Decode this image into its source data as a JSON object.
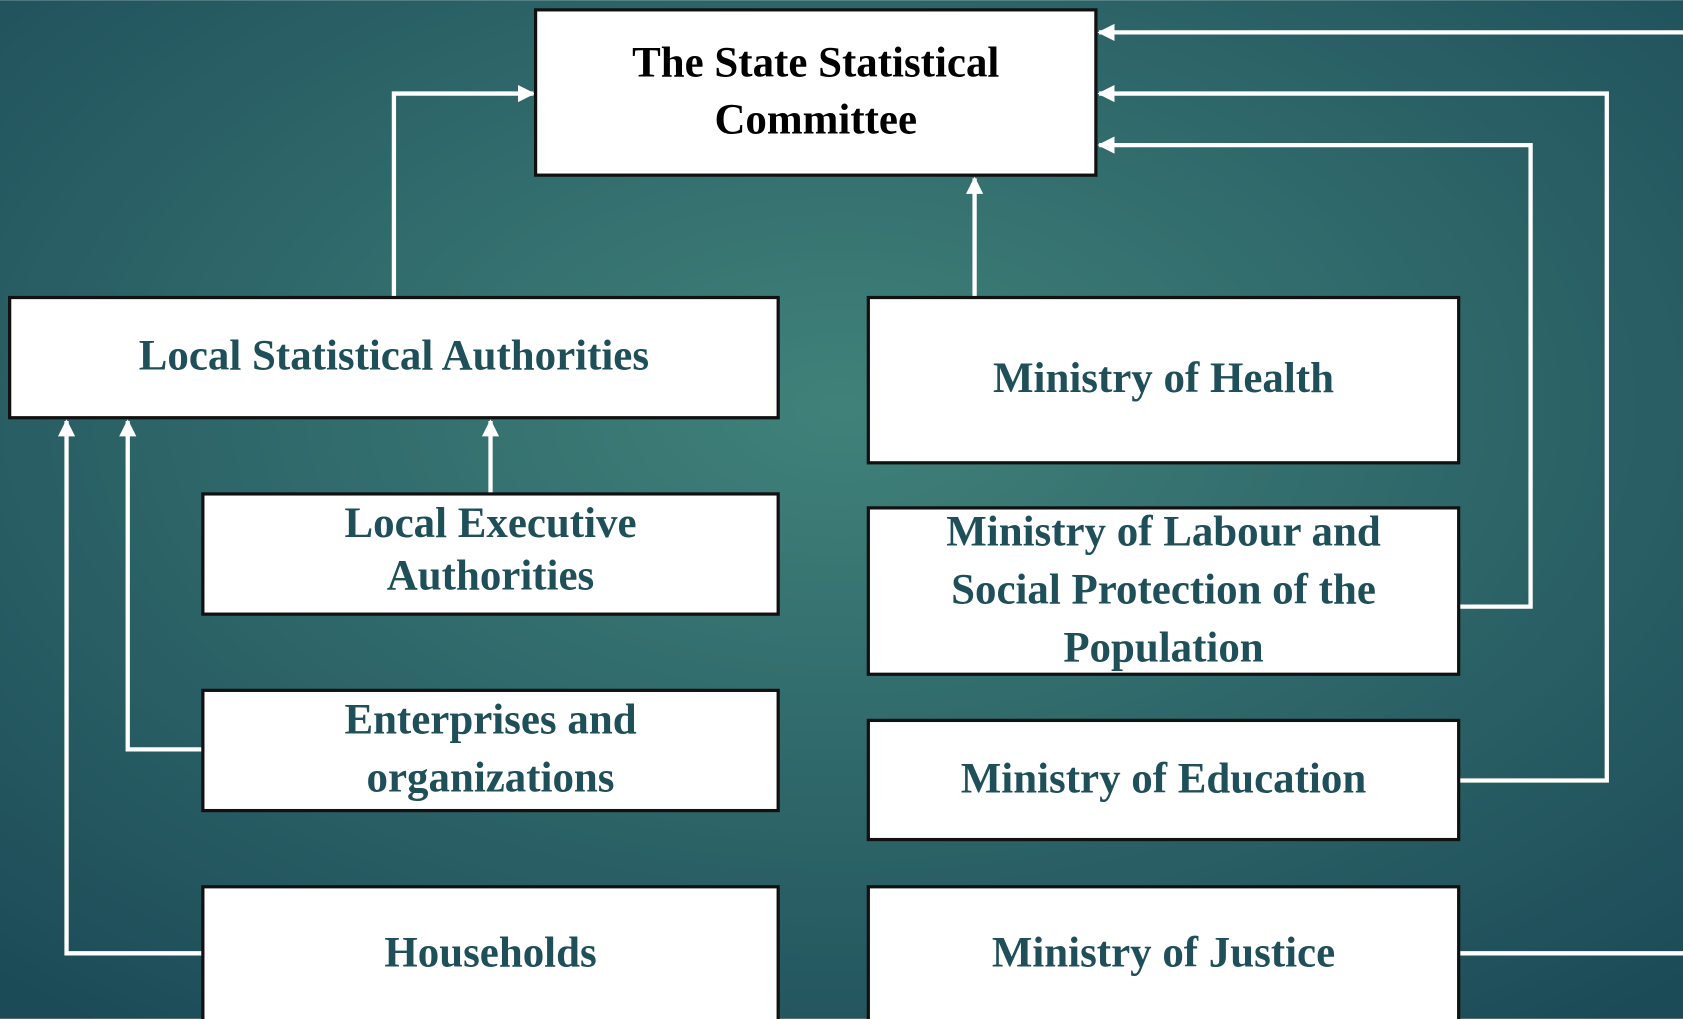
{
  "nodes": [
    {
      "lines": [
        "The State Statistical",
        "Committee"
      ]
    },
    {
      "lines": [
        "Local Statistical Authorities"
      ]
    },
    {
      "lines": [
        "Ministry of Health"
      ]
    },
    {
      "lines": [
        "Local Executive",
        "Authorities"
      ]
    },
    {
      "lines": [
        "Ministry of Labour and",
        "Social Protection of the",
        "Population"
      ]
    },
    {
      "lines": [
        "Enterprises and",
        "organizations"
      ]
    },
    {
      "lines": [
        "Ministry of Education"
      ]
    },
    {
      "lines": [
        "Households"
      ]
    },
    {
      "lines": [
        "Ministry of Justice"
      ]
    }
  ]
}
